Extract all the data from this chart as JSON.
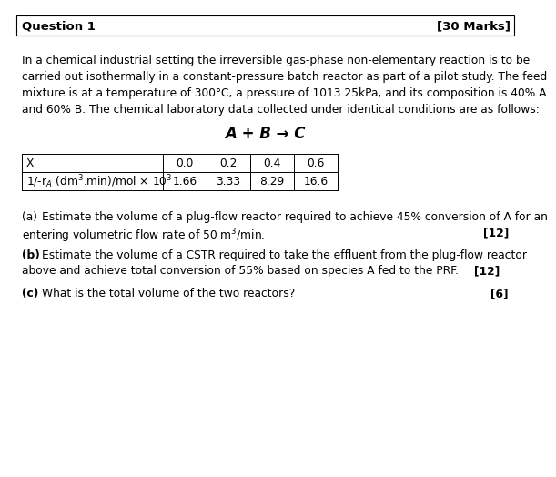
{
  "header_left": "Question 1",
  "header_right": "[30 Marks]",
  "body_text": [
    "In a chemical industrial setting the irreversible gas-phase non-elementary reaction is to be",
    "carried out isothermally in a constant-pressure batch reactor as part of a pilot study. The feed",
    "mixture is at a temperature of 300°C, a pressure of 1013.25kPa, and its composition is 40% A",
    "and 60% B. The chemical laboratory data collected under identical conditions are as follows:"
  ],
  "reaction": "A + B → C",
  "table_x_headers": [
    "X",
    "0.0",
    "0.2",
    "0.4",
    "0.6"
  ],
  "table_row2_label": "1/-r$_A$ (dm$^3$.min)/mol × 10$^3$",
  "table_row2_values": [
    "1.66",
    "3.33",
    "8.29",
    "16.6"
  ],
  "q_a_label": "(a)",
  "q_a_line1": "Estimate the volume of a plug-flow reactor required to achieve 45% conversion of A for an",
  "q_a_line2": "entering volumetric flow rate of 50 m$^3$/min.",
  "q_a_marks": "[12]",
  "q_b_label": "(b)",
  "q_b_line1": " Estimate the volume of a CSTR required to take the effluent from the plug-flow reactor",
  "q_b_line2": "above and achieve total conversion of 55% based on species A fed to the PRF.",
  "q_b_marks": "[12]",
  "q_c_label": "(c)",
  "q_c_line1": " What is the total volume of the two reactors?",
  "q_c_marks": "[6]",
  "background_color": "#ffffff",
  "text_color": "#000000",
  "fs_body": 8.8,
  "fs_header": 9.5,
  "fs_reaction": 12.0
}
